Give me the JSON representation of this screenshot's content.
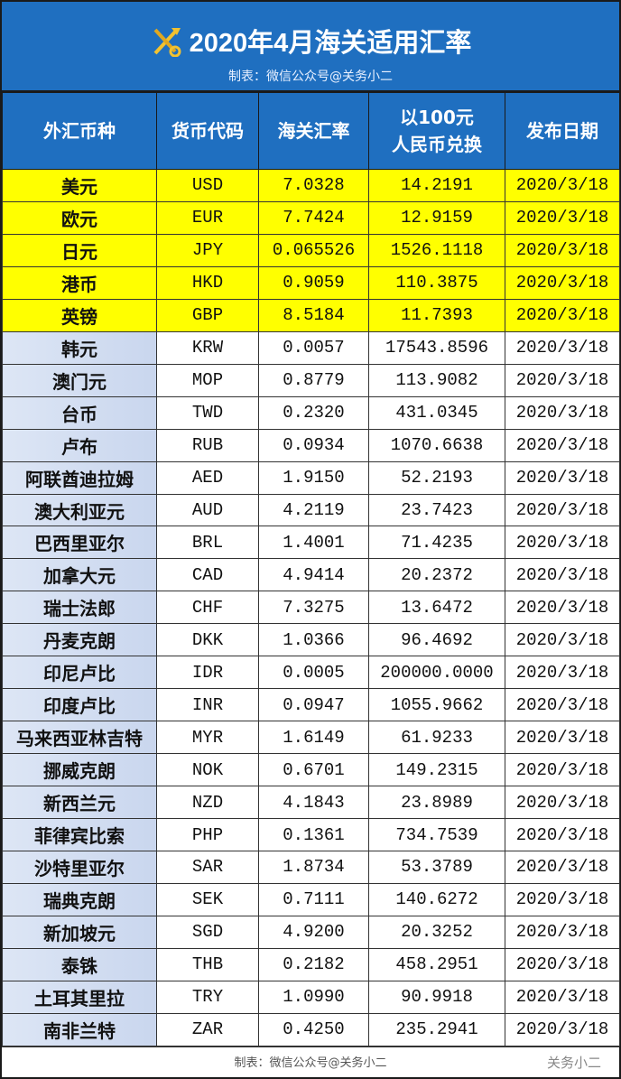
{
  "header": {
    "title": "2020年4月海关适用汇率",
    "subtitle": "制表：微信公众号@关务小二",
    "emblem_icon": "customs-emblem-icon"
  },
  "columns": [
    "外汇币种",
    "货币代码",
    "海关汇率",
    "以100元\n人民币兑换",
    "发布日期"
  ],
  "colors": {
    "header_blue": "#1f6fc0",
    "highlight": "#ffff00",
    "name_cell": "#d4def2"
  },
  "rows": [
    {
      "name": "美元",
      "code": "USD",
      "rate": "7.0328",
      "per100": "14.2191",
      "date": "2020/3/18",
      "highlight": true
    },
    {
      "name": "欧元",
      "code": "EUR",
      "rate": "7.7424",
      "per100": "12.9159",
      "date": "2020/3/18",
      "highlight": true
    },
    {
      "name": "日元",
      "code": "JPY",
      "rate": "0.065526",
      "per100": "1526.1118",
      "date": "2020/3/18",
      "highlight": true
    },
    {
      "name": "港币",
      "code": "HKD",
      "rate": "0.9059",
      "per100": "110.3875",
      "date": "2020/3/18",
      "highlight": true
    },
    {
      "name": "英镑",
      "code": "GBP",
      "rate": "8.5184",
      "per100": "11.7393",
      "date": "2020/3/18",
      "highlight": true
    },
    {
      "name": "韩元",
      "code": "KRW",
      "rate": "0.0057",
      "per100": "17543.8596",
      "date": "2020/3/18"
    },
    {
      "name": "澳门元",
      "code": "MOP",
      "rate": "0.8779",
      "per100": "113.9082",
      "date": "2020/3/18"
    },
    {
      "name": "台币",
      "code": "TWD",
      "rate": "0.2320",
      "per100": "431.0345",
      "date": "2020/3/18"
    },
    {
      "name": "卢布",
      "code": "RUB",
      "rate": "0.0934",
      "per100": "1070.6638",
      "date": "2020/3/18"
    },
    {
      "name": "阿联酋迪拉姆",
      "code": "AED",
      "rate": "1.9150",
      "per100": "52.2193",
      "date": "2020/3/18"
    },
    {
      "name": "澳大利亚元",
      "code": "AUD",
      "rate": "4.2119",
      "per100": "23.7423",
      "date": "2020/3/18"
    },
    {
      "name": "巴西里亚尔",
      "code": "BRL",
      "rate": "1.4001",
      "per100": "71.4235",
      "date": "2020/3/18"
    },
    {
      "name": "加拿大元",
      "code": "CAD",
      "rate": "4.9414",
      "per100": "20.2372",
      "date": "2020/3/18"
    },
    {
      "name": "瑞士法郎",
      "code": "CHF",
      "rate": "7.3275",
      "per100": "13.6472",
      "date": "2020/3/18"
    },
    {
      "name": "丹麦克朗",
      "code": "DKK",
      "rate": "1.0366",
      "per100": "96.4692",
      "date": "2020/3/18"
    },
    {
      "name": "印尼卢比",
      "code": "IDR",
      "rate": "0.0005",
      "per100": "200000.0000",
      "date": "2020/3/18"
    },
    {
      "name": "印度卢比",
      "code": "INR",
      "rate": "0.0947",
      "per100": "1055.9662",
      "date": "2020/3/18"
    },
    {
      "name": "马来西亚林吉特",
      "code": "MYR",
      "rate": "1.6149",
      "per100": "61.9233",
      "date": "2020/3/18"
    },
    {
      "name": "挪威克朗",
      "code": "NOK",
      "rate": "0.6701",
      "per100": "149.2315",
      "date": "2020/3/18"
    },
    {
      "name": "新西兰元",
      "code": "NZD",
      "rate": "4.1843",
      "per100": "23.8989",
      "date": "2020/3/18"
    },
    {
      "name": "菲律宾比索",
      "code": "PHP",
      "rate": "0.1361",
      "per100": "734.7539",
      "date": "2020/3/18"
    },
    {
      "name": "沙特里亚尔",
      "code": "SAR",
      "rate": "1.8734",
      "per100": "53.3789",
      "date": "2020/3/18"
    },
    {
      "name": "瑞典克朗",
      "code": "SEK",
      "rate": "0.7111",
      "per100": "140.6272",
      "date": "2020/3/18"
    },
    {
      "name": "新加坡元",
      "code": "SGD",
      "rate": "4.9200",
      "per100": "20.3252",
      "date": "2020/3/18"
    },
    {
      "name": "泰铢",
      "code": "THB",
      "rate": "0.2182",
      "per100": "458.2951",
      "date": "2020/3/18"
    },
    {
      "name": "土耳其里拉",
      "code": "TRY",
      "rate": "1.0990",
      "per100": "90.9918",
      "date": "2020/3/18"
    },
    {
      "name": "南非兰特",
      "code": "ZAR",
      "rate": "0.4250",
      "per100": "235.2941",
      "date": "2020/3/18"
    }
  ],
  "footer": {
    "text": "制表：微信公众号@关务小二",
    "watermark": "关务小二"
  }
}
